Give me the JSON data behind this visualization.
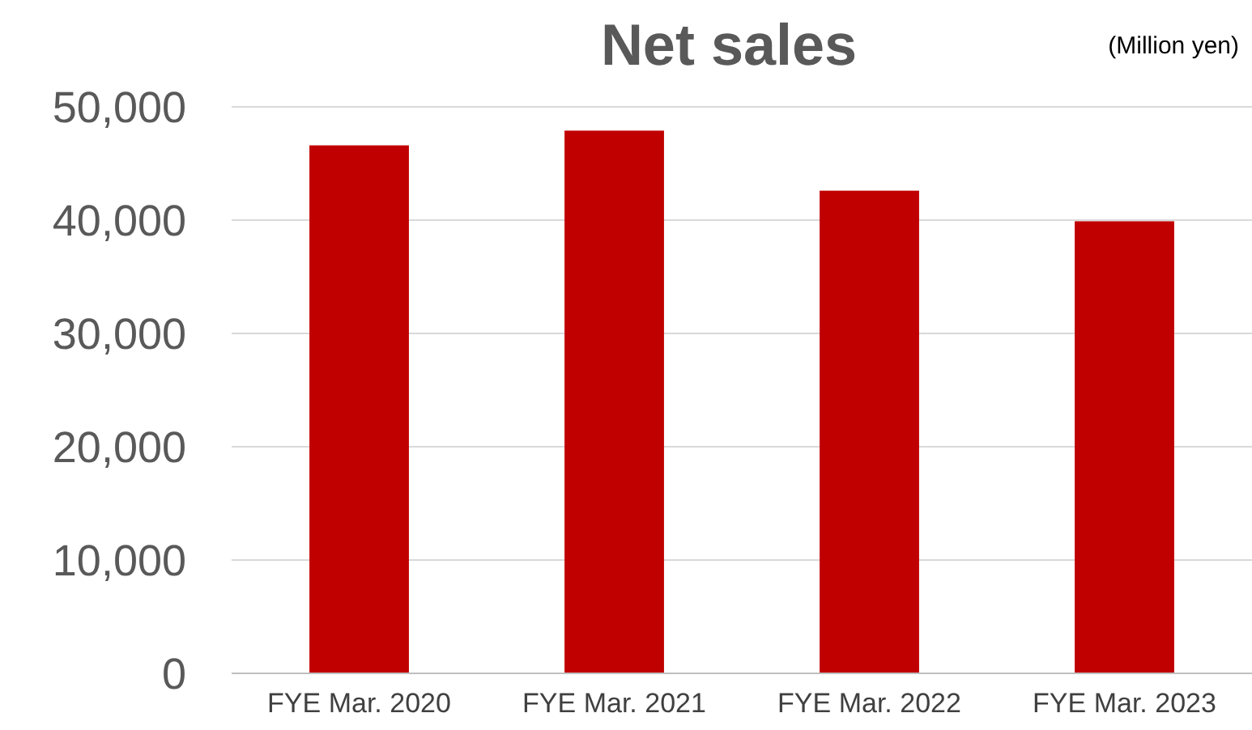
{
  "chart_data": {
    "type": "bar",
    "title": "Net sales",
    "ylabel": "(Million yen)",
    "categories": [
      "FYE Mar. 2020",
      "FYE Mar. 2021",
      "FYE Mar. 2022",
      "FYE Mar. 2023"
    ],
    "values": [
      46600,
      47900,
      42600,
      39900
    ],
    "color": "#c00000",
    "ylim": [
      0,
      50000
    ],
    "yticks": [
      {
        "value": 0,
        "label": "0"
      },
      {
        "value": 10000,
        "label": "10,000"
      },
      {
        "value": 20000,
        "label": "20,000"
      },
      {
        "value": 30000,
        "label": "30,000"
      },
      {
        "value": 40000,
        "label": "40,000"
      },
      {
        "value": 50000,
        "label": "50,000"
      }
    ],
    "grid": "y"
  }
}
